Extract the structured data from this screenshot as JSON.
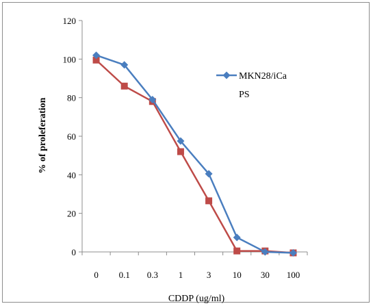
{
  "chart_data": {
    "type": "line",
    "xlabel": "CDDP (ug/ml)",
    "ylabel": "% of proleferation",
    "categories": [
      "0",
      "0.1",
      "0.3",
      "1",
      "3",
      "10",
      "30",
      "100"
    ],
    "ylim": [
      0,
      120
    ],
    "yticks": [
      "0",
      "20",
      "40",
      "60",
      "80",
      "100",
      "120"
    ],
    "grid": false,
    "legend_position": "top-right",
    "legend_text": [
      "MKN28/iCa",
      "PS"
    ],
    "series": [
      {
        "values": [
          102,
          97,
          79,
          57.5,
          40.5,
          7.5,
          0,
          -0.5
        ],
        "color": "#4a7ebf",
        "marker": "diamond"
      },
      {
        "values": [
          99.5,
          86,
          78,
          52,
          26.5,
          0.5,
          0.5,
          -0.5
        ],
        "color": "#be4b48",
        "marker": "square"
      }
    ]
  }
}
